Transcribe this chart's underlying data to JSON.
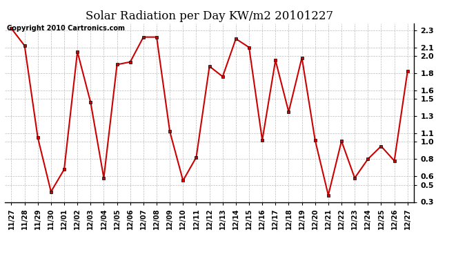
{
  "title": "Solar Radiation per Day KW/m2 20101227",
  "copyright": "Copyright 2010 Cartronics.com",
  "labels": [
    "11/27",
    "11/28",
    "11/29",
    "11/30",
    "12/01",
    "12/02",
    "12/03",
    "12/04",
    "12/05",
    "12/06",
    "12/07",
    "12/08",
    "12/09",
    "12/10",
    "12/11",
    "12/12",
    "12/13",
    "12/14",
    "12/15",
    "12/16",
    "12/17",
    "12/18",
    "12/19",
    "12/20",
    "12/21",
    "12/22",
    "12/23",
    "12/24",
    "12/25",
    "12/26",
    "12/27"
  ],
  "values": [
    2.32,
    2.12,
    1.05,
    0.42,
    0.68,
    2.05,
    1.46,
    0.58,
    1.9,
    1.93,
    2.22,
    2.22,
    1.12,
    0.55,
    0.82,
    1.88,
    1.76,
    2.2,
    2.1,
    1.02,
    1.95,
    1.35,
    1.98,
    1.02,
    0.38,
    1.01,
    0.58,
    0.8,
    0.95,
    0.78,
    1.82
  ],
  "line_color": "#cc0000",
  "marker": "s",
  "marker_size": 3,
  "ylim_min": 0.3,
  "ylim_max": 2.38,
  "yticks": [
    0.3,
    0.5,
    0.6,
    0.8,
    1.0,
    1.1,
    1.3,
    1.5,
    1.6,
    1.8,
    2.0,
    2.1,
    2.3
  ],
  "background_color": "#ffffff",
  "plot_bg_color": "#ffffff",
  "grid_color": "#bbbbbb",
  "title_fontsize": 12,
  "copyright_fontsize": 7,
  "tick_fontsize": 8,
  "xtick_fontsize": 7
}
